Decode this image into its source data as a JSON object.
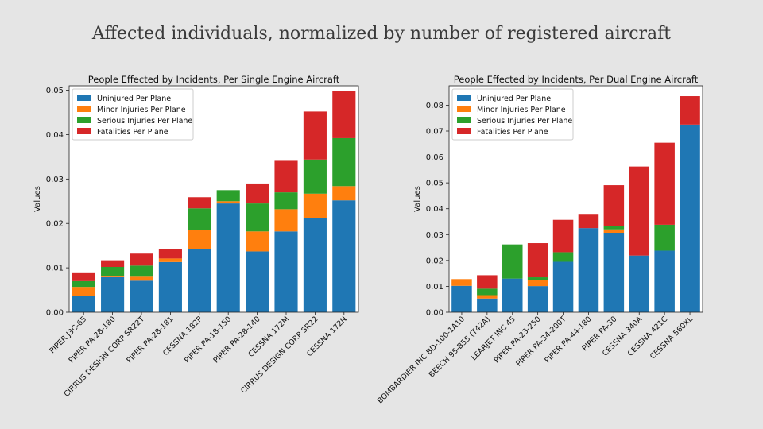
{
  "slide": {
    "title": "Affected individuals, normalized by number of registered aircraft"
  },
  "colors": {
    "uninjured": "#1f77b4",
    "minor": "#ff7f0e",
    "serious": "#2ca02c",
    "fatal": "#d62728"
  },
  "chart_data": [
    {
      "type": "bar",
      "stacked": true,
      "title": "People Effected by Incidents, Per Single Engine Aircraft",
      "xlabel": "",
      "ylabel": "Values",
      "ylim": [
        0,
        0.051
      ],
      "yticks": [
        0.0,
        0.01,
        0.02,
        0.03,
        0.04,
        0.05
      ],
      "ytick_labels": [
        "0.00",
        "0.01",
        "0.02",
        "0.03",
        "0.04",
        "0.05"
      ],
      "legend": "top-left",
      "categories": [
        "PIPER J3C-65",
        "PIPER PA-28-180",
        "CIRRUS DESIGN CORP SR22T",
        "PIPER PA-28-181",
        "CESSNA 182P",
        "PIPER PA-18-150",
        "PIPER PA-28-140",
        "CESSNA 172M",
        "CIRRUS DESIGN CORP SR22",
        "CESSNA 172N"
      ],
      "series": [
        {
          "name": "Uninjured Per Plane",
          "color_key": "uninjured",
          "values": [
            0.0037,
            0.0079,
            0.0071,
            0.0113,
            0.0143,
            0.0245,
            0.0137,
            0.0182,
            0.0212,
            0.0252
          ]
        },
        {
          "name": "Minor Injuries Per Plane",
          "color_key": "minor",
          "values": [
            0.002,
            0.0003,
            0.0009,
            0.0008,
            0.0043,
            0.0005,
            0.0045,
            0.005,
            0.0055,
            0.0032
          ]
        },
        {
          "name": "Serious Injuries Per Plane",
          "color_key": "serious",
          "values": [
            0.0013,
            0.002,
            0.0025,
            0.0,
            0.0048,
            0.0025,
            0.0063,
            0.0038,
            0.0077,
            0.0108
          ]
        },
        {
          "name": "Fatalities Per Plane",
          "color_key": "fatal",
          "values": [
            0.0018,
            0.0015,
            0.0027,
            0.0021,
            0.0025,
            0.0,
            0.0045,
            0.0071,
            0.0108,
            0.0106
          ]
        }
      ]
    },
    {
      "type": "bar",
      "stacked": true,
      "title": "People Effected by Incidents, Per Dual Engine Aircraft",
      "xlabel": "",
      "ylabel": "Values",
      "ylim": [
        0,
        0.0875
      ],
      "yticks": [
        0.0,
        0.01,
        0.02,
        0.03,
        0.04,
        0.05,
        0.06,
        0.07,
        0.08
      ],
      "ytick_labels": [
        "0.00",
        "0.01",
        "0.02",
        "0.03",
        "0.04",
        "0.05",
        "0.06",
        "0.07",
        "0.08"
      ],
      "legend": "top-left",
      "categories": [
        "BOMBARDIER INC BD-100-1A10",
        "BEECH 95-B55 (T42A)",
        "LEARJET INC 45",
        "PIPER PA-23-250",
        "PIPER PA-34-200T",
        "PIPER PA-44-180",
        "PIPER PA-30",
        "CESSNA 340A",
        "CESSNA 421C",
        "CESSNA 560XL"
      ],
      "series": [
        {
          "name": "Uninjured Per Plane",
          "color_key": "uninjured",
          "values": [
            0.0102,
            0.0053,
            0.013,
            0.0101,
            0.0195,
            0.0325,
            0.0307,
            0.0219,
            0.0238,
            0.0725
          ]
        },
        {
          "name": "Minor Injuries Per Plane",
          "color_key": "minor",
          "values": [
            0.0026,
            0.0013,
            0.0,
            0.0022,
            0.0,
            0.0,
            0.0013,
            0.0,
            0.0,
            0.0
          ]
        },
        {
          "name": "Serious Injuries Per Plane",
          "color_key": "serious",
          "values": [
            0.0,
            0.0025,
            0.0132,
            0.0012,
            0.0037,
            0.0,
            0.0013,
            0.0,
            0.01,
            0.0
          ]
        },
        {
          "name": "Fatalities Per Plane",
          "color_key": "fatal",
          "values": [
            0.0,
            0.0052,
            0.0,
            0.0132,
            0.0125,
            0.0055,
            0.0158,
            0.0344,
            0.0317,
            0.011
          ]
        }
      ]
    }
  ]
}
